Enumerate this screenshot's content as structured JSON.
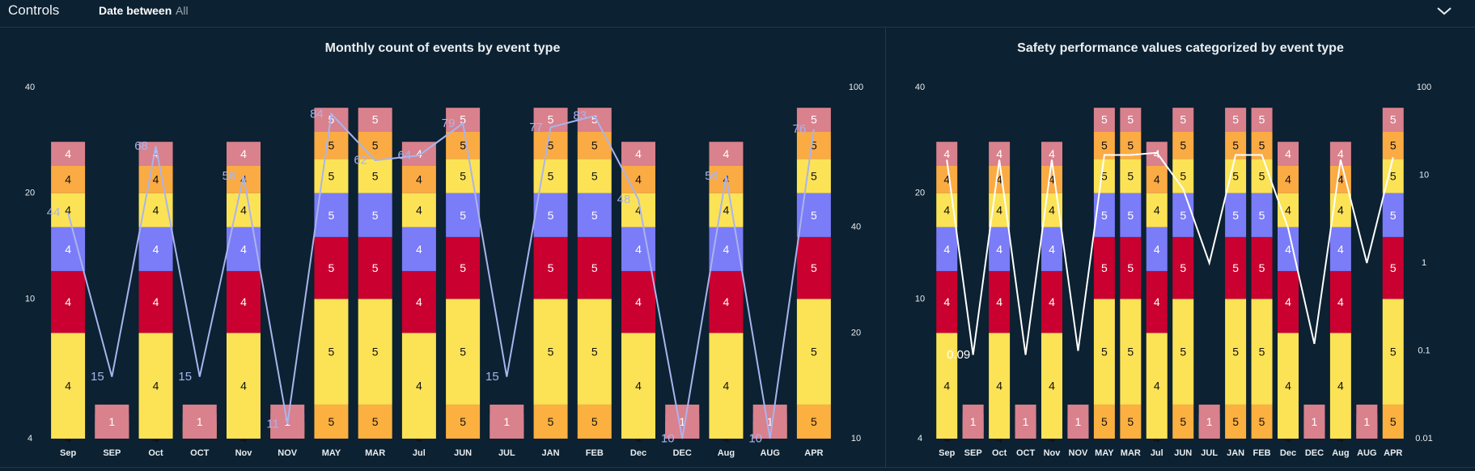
{
  "controls": {
    "title": "Controls",
    "filter_label": "Date between",
    "filter_value": "All",
    "collapse_icon": "chevron-down-icon"
  },
  "colors": {
    "background": "#0c2131",
    "segment_colors": [
      "#fbb040",
      "#fce356",
      "#7b7cf7",
      "#ca0030",
      "#7b7cf7",
      "#fce356",
      "#fbab43",
      "#d9818d"
    ],
    "line_chart1": "#a9b4ee",
    "line_chart2": "#ffffff"
  },
  "chart_data": [
    {
      "type": "bar",
      "title": "Monthly count of events by event type",
      "stacked": true,
      "categories": [
        "Sep",
        "SEP",
        "Oct",
        "OCT",
        "Nov",
        "NOV",
        "MAY",
        "MAR",
        "Jul",
        "JUN",
        "JUL",
        "JAN",
        "FEB",
        "Dec",
        "DEC",
        "Aug",
        "AUG",
        "APR"
      ],
      "segment_labels": [
        [
          "4",
          "4",
          "",
          "4",
          "4",
          "4",
          "4",
          "4"
        ],
        [
          "1",
          "1",
          "1",
          "",
          "",
          "",
          "1",
          "1"
        ],
        [
          "4",
          "4",
          "",
          "4",
          "4",
          "4",
          "4",
          "4"
        ],
        [
          "1",
          "1",
          "1",
          "",
          "",
          "",
          "1",
          "1"
        ],
        [
          "4",
          "4",
          "",
          "4",
          "4",
          "4",
          "4",
          "4"
        ],
        [
          "1",
          "1",
          "1",
          "",
          "",
          "",
          "1",
          "1"
        ],
        [
          "5",
          "5",
          "",
          "5",
          "5",
          "5",
          "5",
          "5"
        ],
        [
          "5",
          "5",
          "",
          "5",
          "5",
          "5",
          "5",
          "5"
        ],
        [
          "4",
          "4",
          "",
          "4",
          "4",
          "4",
          "4",
          "4"
        ],
        [
          "5",
          "5",
          "",
          "5",
          "5",
          "5",
          "5",
          "5"
        ],
        [
          "1",
          "1",
          "1",
          "",
          "",
          "",
          "1",
          "1"
        ],
        [
          "5",
          "5",
          "",
          "5",
          "5",
          "5",
          "5",
          "5"
        ],
        [
          "5",
          "5",
          "",
          "5",
          "5",
          "5",
          "5",
          "5"
        ],
        [
          "4",
          "4",
          "",
          "4",
          "4",
          "4",
          "4",
          "4"
        ],
        [
          "1",
          "1",
          "1",
          "",
          "",
          "",
          "1",
          "1"
        ],
        [
          "4",
          "4",
          "",
          "4",
          "4",
          "4",
          "4",
          "4"
        ],
        [
          "1",
          "1",
          "1",
          "",
          "",
          "",
          "1",
          "1"
        ],
        [
          "5",
          "5",
          "",
          "5",
          "5",
          "5",
          "5",
          "5"
        ]
      ],
      "y_axis_left": {
        "scale": "log",
        "ticks": [
          "4",
          "10",
          "20",
          "40"
        ],
        "range": [
          4,
          40
        ]
      },
      "y_axis_right": {
        "scale": "log",
        "ticks": [
          "10",
          "20",
          "40",
          "100"
        ],
        "range": [
          10,
          100
        ]
      },
      "line_series": {
        "axis": "right",
        "values": [
          44,
          15,
          68,
          15,
          56,
          11,
          84,
          62,
          64,
          79,
          15,
          77,
          83,
          48,
          10,
          56,
          10,
          76
        ],
        "labels": [
          "44",
          "15",
          "68",
          "15",
          "56",
          "11",
          "84",
          "62",
          "64",
          "79",
          "15",
          "77",
          "83",
          "48",
          "10",
          "56",
          "10",
          "76"
        ]
      }
    },
    {
      "type": "bar",
      "title": "Safety performance values categorized by event type",
      "stacked": true,
      "categories": [
        "Sep",
        "SEP",
        "Oct",
        "OCT",
        "Nov",
        "NOV",
        "MAY",
        "MAR",
        "Jul",
        "JUN",
        "JUL",
        "JAN",
        "FEB",
        "Dec",
        "DEC",
        "Aug",
        "AUG",
        "APR"
      ],
      "segment_labels": [
        [
          "4",
          "4",
          "",
          "4",
          "4",
          "4",
          "4",
          "4"
        ],
        [
          "1",
          "1",
          "1",
          "",
          "",
          "",
          "1",
          "1"
        ],
        [
          "4",
          "4",
          "",
          "4",
          "4",
          "4",
          "4",
          "4"
        ],
        [
          "1",
          "1",
          "1",
          "",
          "",
          "",
          "1",
          "1"
        ],
        [
          "4",
          "4",
          "",
          "4",
          "4",
          "4",
          "4",
          "4"
        ],
        [
          "1",
          "1",
          "1",
          "",
          "",
          "",
          "1",
          "1"
        ],
        [
          "5",
          "5",
          "",
          "5",
          "5",
          "5",
          "5",
          "5"
        ],
        [
          "5",
          "5",
          "",
          "5",
          "5",
          "5",
          "5",
          "5"
        ],
        [
          "4",
          "4",
          "",
          "4",
          "4",
          "4",
          "4",
          "4"
        ],
        [
          "5",
          "5",
          "",
          "5",
          "5",
          "5",
          "5",
          "5"
        ],
        [
          "1",
          "1",
          "1",
          "",
          "",
          "",
          "1",
          "1"
        ],
        [
          "5",
          "5",
          "",
          "5",
          "5",
          "5",
          "5",
          "5"
        ],
        [
          "5",
          "5",
          "",
          "5",
          "5",
          "5",
          "5",
          "5"
        ],
        [
          "4",
          "4",
          "",
          "4",
          "4",
          "4",
          "4",
          "4"
        ],
        [
          "1",
          "1",
          "1",
          "",
          "",
          "",
          "1",
          "1"
        ],
        [
          "4",
          "4",
          "",
          "4",
          "4",
          "4",
          "4",
          "4"
        ],
        [
          "1",
          "1",
          "1",
          "",
          "",
          "",
          "1",
          "1"
        ],
        [
          "5",
          "5",
          "",
          "5",
          "5",
          "5",
          "5",
          "5"
        ]
      ],
      "y_axis_left": {
        "scale": "log",
        "ticks": [
          "4",
          "10",
          "20",
          "40"
        ],
        "range": [
          4,
          40
        ]
      },
      "y_axis_right": {
        "scale": "log",
        "ticks": [
          "0.01",
          "0.1",
          "1",
          "10",
          "100"
        ],
        "range": [
          0.01,
          100
        ]
      },
      "line_series": {
        "axis": "right",
        "values": [
          15,
          0.09,
          15,
          0.09,
          15,
          0.1,
          17,
          17,
          18,
          7,
          1,
          17,
          17,
          2.5,
          0.12,
          15,
          1,
          16
        ],
        "labels": [
          "",
          "0.09",
          "",
          "",
          "",
          "",
          "",
          "",
          "",
          "",
          "",
          "",
          "",
          "",
          "",
          "",
          "",
          ""
        ]
      }
    }
  ]
}
